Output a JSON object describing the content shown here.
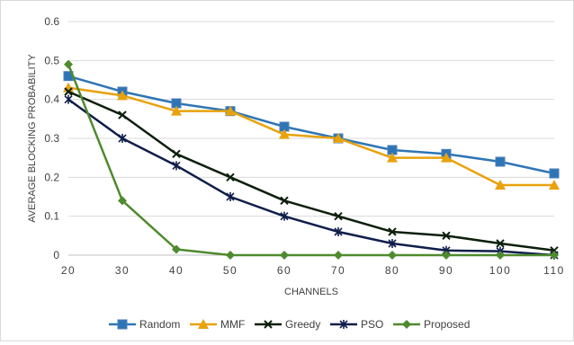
{
  "chart_data": {
    "type": "line",
    "title": "",
    "xlabel": "CHANNELS",
    "ylabel": "AVERAGE BLOCKING PROBABILITY",
    "x": [
      20,
      30,
      40,
      50,
      60,
      70,
      80,
      90,
      100,
      110
    ],
    "xlim": [
      20,
      110
    ],
    "ylim": [
      0,
      0.6
    ],
    "yticks": [
      "0",
      "0.1",
      "0.2",
      "0.3",
      "0.4",
      "0.5",
      "0.6"
    ],
    "xticks": [
      "20",
      "30",
      "40",
      "50",
      "60",
      "70",
      "80",
      "90",
      "100",
      "110"
    ],
    "grid": "horizontal",
    "legend_position": "bottom",
    "series": [
      {
        "name": "Random",
        "color": "#2e75b6",
        "marker": "square",
        "values": [
          0.46,
          0.42,
          0.39,
          0.37,
          0.33,
          0.3,
          0.27,
          0.26,
          0.24,
          0.21
        ]
      },
      {
        "name": "MMF",
        "color": "#e8a20c",
        "marker": "triangle",
        "values": [
          0.43,
          0.41,
          0.37,
          0.37,
          0.31,
          0.3,
          0.25,
          0.25,
          0.18,
          0.18
        ]
      },
      {
        "name": "Greedy",
        "color": "#0d1f0d",
        "marker": "x",
        "values": [
          0.42,
          0.36,
          0.26,
          0.2,
          0.14,
          0.1,
          0.06,
          0.05,
          0.03,
          0.012
        ]
      },
      {
        "name": "PSO",
        "color": "#0f1e4a",
        "marker": "star",
        "values": [
          0.4,
          0.3,
          0.23,
          0.15,
          0.1,
          0.06,
          0.03,
          0.012,
          0.01,
          0.0
        ]
      },
      {
        "name": "Proposed",
        "color": "#4e8a2e",
        "marker": "diamond",
        "values": [
          0.49,
          0.14,
          0.015,
          0.0,
          0.0,
          0.0,
          0.0,
          0.0,
          0.0,
          0.0
        ]
      }
    ]
  }
}
